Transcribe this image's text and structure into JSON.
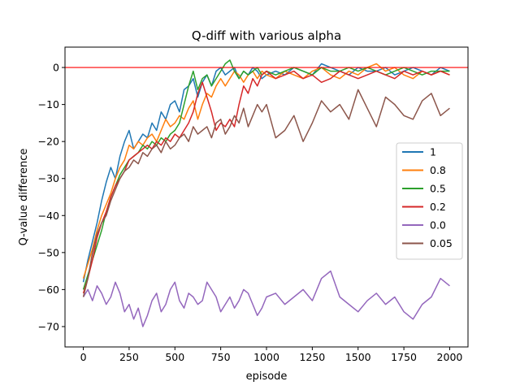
{
  "chart_data": {
    "type": "line",
    "title": "Q-diff with various alpha",
    "xlabel": "episode",
    "ylabel": "Q-value difference",
    "xlim": [
      -100,
      2100
    ],
    "ylim": [
      -75.5,
      5.5
    ],
    "xticks": [
      0,
      250,
      500,
      750,
      1000,
      1250,
      1500,
      1750,
      2000
    ],
    "yticks": [
      0,
      -10,
      -20,
      -30,
      -40,
      -50,
      -60,
      -70
    ],
    "grid": false,
    "legend_position": "center-right",
    "reference_line": {
      "y": 0,
      "color": "#ff0000"
    },
    "series": [
      {
        "name": "1",
        "color": "#1f77b4",
        "x": [
          0,
          25,
          50,
          75,
          100,
          125,
          150,
          175,
          200,
          225,
          250,
          275,
          300,
          325,
          350,
          375,
          400,
          425,
          450,
          475,
          500,
          525,
          550,
          575,
          600,
          625,
          650,
          675,
          700,
          725,
          750,
          775,
          800,
          825,
          850,
          875,
          900,
          925,
          950,
          975,
          1000,
          1050,
          1100,
          1150,
          1200,
          1250,
          1300,
          1350,
          1400,
          1450,
          1500,
          1550,
          1600,
          1650,
          1700,
          1750,
          1800,
          1850,
          1900,
          1950,
          2000
        ],
        "y": [
          -58,
          -52,
          -47,
          -42,
          -36,
          -31,
          -27,
          -30,
          -24,
          -20,
          -17,
          -22,
          -20,
          -18,
          -19,
          -15,
          -17,
          -12,
          -14,
          -10,
          -9,
          -12,
          -6,
          -5,
          -3,
          -8,
          -4,
          -2,
          -5,
          -1,
          0,
          -2,
          -1,
          0,
          -3,
          -1,
          -2,
          0,
          -1,
          -3,
          -2,
          -1,
          -2,
          0,
          -1,
          -2,
          1,
          0,
          -1,
          -2,
          0,
          -1,
          -1,
          0,
          -2,
          -1,
          0,
          -1,
          -2,
          0,
          -1
        ]
      },
      {
        "name": "0.8",
        "color": "#ff7f0e",
        "x": [
          0,
          25,
          50,
          75,
          100,
          125,
          150,
          175,
          200,
          225,
          250,
          275,
          300,
          325,
          350,
          375,
          400,
          425,
          450,
          475,
          500,
          525,
          550,
          575,
          600,
          625,
          650,
          675,
          700,
          725,
          750,
          775,
          800,
          825,
          850,
          875,
          900,
          925,
          950,
          975,
          1000,
          1050,
          1100,
          1150,
          1200,
          1250,
          1300,
          1350,
          1400,
          1450,
          1500,
          1550,
          1600,
          1650,
          1700,
          1750,
          1800,
          1850,
          1900,
          1950,
          2000
        ],
        "y": [
          -57,
          -53,
          -49,
          -44,
          -40,
          -37,
          -34,
          -30,
          -27,
          -25,
          -21,
          -22,
          -20,
          -21,
          -19,
          -18,
          -20,
          -17,
          -14,
          -16,
          -15,
          -13,
          -14,
          -11,
          -9,
          -14,
          -10,
          -7,
          -8,
          -5,
          -3,
          -5,
          -3,
          -1,
          -2,
          -4,
          -2,
          -1,
          -3,
          -1,
          -2,
          -3,
          -1,
          -2,
          -3,
          -1,
          0,
          -2,
          -3,
          -1,
          -2,
          0,
          1,
          -1,
          0,
          -2,
          -3,
          -1,
          -2,
          -1,
          -2
        ]
      },
      {
        "name": "0.5",
        "color": "#2ca02c",
        "x": [
          0,
          25,
          50,
          75,
          100,
          125,
          150,
          175,
          200,
          225,
          250,
          275,
          300,
          325,
          350,
          375,
          400,
          425,
          450,
          475,
          500,
          525,
          550,
          575,
          600,
          625,
          650,
          675,
          700,
          725,
          750,
          775,
          800,
          825,
          850,
          875,
          900,
          925,
          950,
          975,
          1000,
          1050,
          1100,
          1150,
          1200,
          1250,
          1300,
          1350,
          1400,
          1450,
          1500,
          1550,
          1600,
          1650,
          1700,
          1750,
          1800,
          1850,
          1900,
          1950,
          2000
        ],
        "y": [
          -60,
          -56,
          -52,
          -48,
          -44,
          -39,
          -35,
          -32,
          -29,
          -27,
          -25,
          -24,
          -23,
          -21,
          -22,
          -20,
          -21,
          -19,
          -20,
          -18,
          -17,
          -15,
          -10,
          -5,
          -1,
          -6,
          -3,
          -2,
          -5,
          -3,
          -1,
          1,
          2,
          -1,
          -3,
          -1,
          -2,
          -1,
          0,
          -2,
          -1,
          -2,
          -1,
          0,
          -1,
          -2,
          0,
          -1,
          -1,
          0,
          -1,
          0,
          -1,
          -2,
          -1,
          0,
          -1,
          -2,
          -1,
          -1,
          -1
        ]
      },
      {
        "name": "0.2",
        "color": "#d62728",
        "x": [
          0,
          25,
          50,
          75,
          100,
          125,
          150,
          175,
          200,
          225,
          250,
          275,
          300,
          325,
          350,
          375,
          400,
          425,
          450,
          475,
          500,
          525,
          550,
          575,
          600,
          625,
          650,
          675,
          700,
          725,
          750,
          775,
          800,
          825,
          850,
          875,
          900,
          925,
          950,
          975,
          1000,
          1050,
          1100,
          1150,
          1200,
          1250,
          1300,
          1350,
          1400,
          1450,
          1500,
          1550,
          1600,
          1650,
          1700,
          1750,
          1800,
          1850,
          1900,
          1950,
          2000
        ],
        "y": [
          -61,
          -57,
          -52,
          -46,
          -42,
          -39,
          -35,
          -32,
          -30,
          -28,
          -25,
          -24,
          -23,
          -22,
          -21,
          -22,
          -20,
          -21,
          -19,
          -20,
          -18,
          -19,
          -17,
          -15,
          -12,
          -7,
          -4,
          -8,
          -12,
          -17,
          -15,
          -16,
          -14,
          -16,
          -10,
          -5,
          -7,
          -3,
          -5,
          -2,
          -1,
          -3,
          -2,
          -1,
          -3,
          -2,
          -4,
          -3,
          -1,
          -2,
          -3,
          -2,
          -1,
          -2,
          -3,
          -1,
          -2,
          -1,
          -2,
          -1,
          -2
        ]
      },
      {
        "name": "0.0",
        "color": "#9467bd",
        "x": [
          0,
          25,
          50,
          75,
          100,
          125,
          150,
          175,
          200,
          225,
          250,
          275,
          300,
          325,
          350,
          375,
          400,
          425,
          450,
          475,
          500,
          525,
          550,
          575,
          600,
          625,
          650,
          675,
          700,
          725,
          750,
          775,
          800,
          825,
          850,
          875,
          900,
          925,
          950,
          975,
          1000,
          1050,
          1100,
          1150,
          1200,
          1250,
          1300,
          1350,
          1400,
          1450,
          1500,
          1550,
          1600,
          1650,
          1700,
          1750,
          1800,
          1850,
          1900,
          1950,
          2000
        ],
        "y": [
          -62,
          -60,
          -63,
          -59,
          -61,
          -64,
          -62,
          -58,
          -61,
          -66,
          -64,
          -68,
          -65,
          -70,
          -67,
          -63,
          -61,
          -66,
          -64,
          -60,
          -58,
          -63,
          -65,
          -61,
          -62,
          -64,
          -63,
          -58,
          -60,
          -62,
          -66,
          -64,
          -62,
          -65,
          -63,
          -60,
          -61,
          -64,
          -67,
          -65,
          -62,
          -61,
          -64,
          -62,
          -60,
          -63,
          -57,
          -55,
          -62,
          -64,
          -66,
          -63,
          -61,
          -64,
          -62,
          -66,
          -68,
          -64,
          -62,
          -57,
          -59
        ]
      },
      {
        "name": "0.05",
        "color": "#8c564b",
        "x": [
          0,
          25,
          50,
          75,
          100,
          125,
          150,
          175,
          200,
          225,
          250,
          275,
          300,
          325,
          350,
          375,
          400,
          425,
          450,
          475,
          500,
          525,
          550,
          575,
          600,
          625,
          650,
          675,
          700,
          725,
          750,
          775,
          800,
          825,
          850,
          875,
          900,
          925,
          950,
          975,
          1000,
          1050,
          1100,
          1150,
          1200,
          1250,
          1300,
          1350,
          1400,
          1450,
          1500,
          1550,
          1600,
          1650,
          1700,
          1750,
          1800,
          1850,
          1900,
          1950,
          2000
        ],
        "y": [
          -62,
          -57,
          -50,
          -45,
          -42,
          -40,
          -36,
          -33,
          -30,
          -28,
          -27,
          -25,
          -26,
          -23,
          -24,
          -22,
          -21,
          -23,
          -20,
          -22,
          -21,
          -19,
          -18,
          -20,
          -16,
          -18,
          -17,
          -16,
          -19,
          -15,
          -14,
          -18,
          -16,
          -13,
          -15,
          -11,
          -16,
          -13,
          -10,
          -12,
          -10,
          -19,
          -17,
          -13,
          -20,
          -15,
          -9,
          -12,
          -10,
          -14,
          -6,
          -11,
          -16,
          -8,
          -10,
          -13,
          -14,
          -9,
          -7,
          -13,
          -11
        ]
      }
    ]
  }
}
